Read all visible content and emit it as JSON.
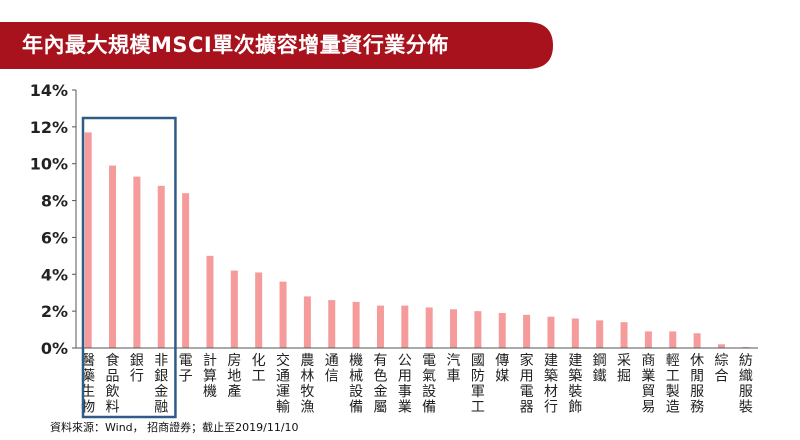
{
  "header": {
    "title": "年內最大規模MSCI單次擴容增量資行業分佈"
  },
  "footer": {
    "source": "資料來源：Wind， 招商證券；截止至2019/11/10"
  },
  "colors": {
    "banner": "#a8121c",
    "bar": "#f59b9b",
    "highlight_box": "#2f5b86",
    "axis": "#555555",
    "text": "#222222"
  },
  "chart_data": {
    "type": "bar",
    "title": "",
    "xlabel": "",
    "ylabel": "",
    "ylim": [
      0,
      14
    ],
    "y_ticks": [
      "0%",
      "2%",
      "4%",
      "6%",
      "8%",
      "10%",
      "12%",
      "14%"
    ],
    "grid": false,
    "legend": "none",
    "categories": [
      "醫藥生物",
      "食品飲料",
      "銀行",
      "非銀金融",
      "電子",
      "計算機",
      "房地產",
      "化工",
      "交通運輸",
      "農林牧漁",
      "通信",
      "機械設備",
      "有色金屬",
      "公用事業",
      "電氣設備",
      "汽車",
      "國防軍工",
      "傳媒",
      "家用電器",
      "建築材行",
      "建築裝飾",
      "鋼鐵",
      "采掘",
      "商業貿易",
      "輕工製造",
      "休閒服務",
      "綜合",
      "紡織服裝"
    ],
    "values": [
      11.7,
      9.9,
      9.3,
      8.8,
      8.4,
      5.0,
      4.2,
      4.1,
      3.6,
      2.8,
      2.6,
      2.5,
      2.3,
      2.3,
      2.2,
      2.1,
      2.0,
      1.9,
      1.8,
      1.7,
      1.6,
      1.5,
      1.4,
      0.9,
      0.9,
      0.8,
      0.2,
      0.05
    ],
    "highlighted_categories": [
      "醫藥生物",
      "食品飲料",
      "銀行",
      "非銀金融"
    ]
  }
}
